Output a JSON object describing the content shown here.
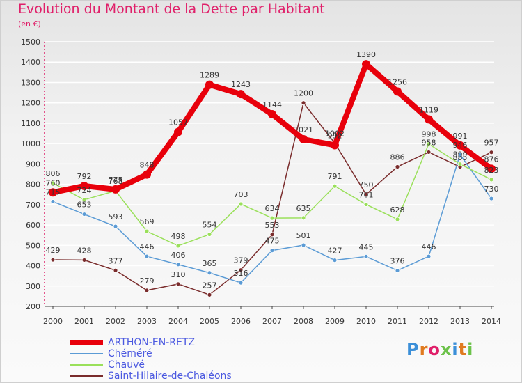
{
  "title": "Evolution du Montant de la Dette par Habitant",
  "subtitle": "(en €)",
  "logo": "Proxiti",
  "chart_data": {
    "type": "line",
    "x": [
      "2000",
      "2001",
      "2002",
      "2003",
      "2004",
      "2005",
      "2006",
      "2007",
      "2008",
      "2009",
      "2010",
      "2011",
      "2012",
      "2013",
      "2014"
    ],
    "ylim": [
      200,
      1500
    ],
    "yticks": [
      200,
      300,
      400,
      500,
      600,
      700,
      800,
      900,
      1000,
      1100,
      1200,
      1300,
      1400,
      1500
    ],
    "grid": "horizontal",
    "legend_placement": "bottom-left",
    "series": [
      {
        "name": "ARTHON-EN-RETZ",
        "color": "#e8000b",
        "values": [
          760,
          792,
          775,
          848,
          1057,
          1289,
          1243,
          1144,
          1021,
          992,
          1390,
          1256,
          1119,
          991,
          876
        ]
      },
      {
        "name": "Chéméré",
        "color": "#5b9bd5",
        "values": [
          715,
          653,
          593,
          446,
          406,
          365,
          316,
          475,
          501,
          427,
          445,
          376,
          446,
          946,
          730
        ]
      },
      {
        "name": "Chauvé",
        "color": "#9ae05a",
        "values": [
          806,
          724,
          768,
          569,
          498,
          554,
          703,
          634,
          635,
          791,
          701,
          628,
          998,
          899,
          823
        ]
      },
      {
        "name": "Saint-Hilaire-de-Chaléons",
        "color": "#7a2c2c",
        "values": [
          429,
          428,
          377,
          279,
          310,
          257,
          379,
          553,
          1200,
          1002,
          750,
          886,
          958,
          885,
          957
        ]
      }
    ]
  }
}
